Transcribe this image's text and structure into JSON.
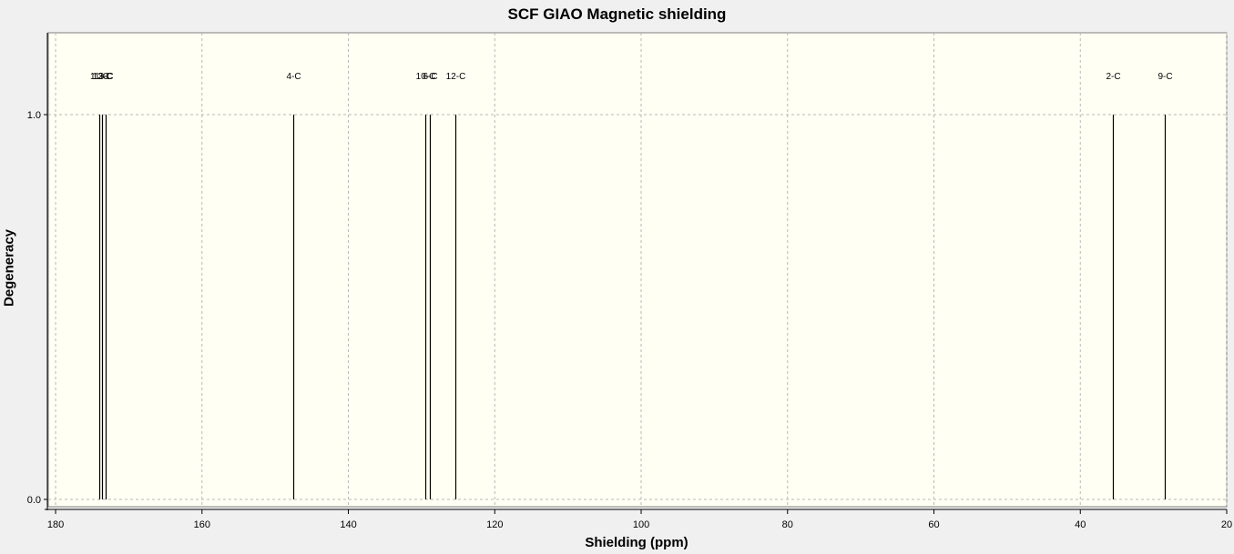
{
  "chart_data": {
    "type": "bar",
    "title": "SCF GIAO Magnetic shielding",
    "xlabel": "Shielding (ppm)",
    "ylabel": "Degeneracy",
    "xlim": [
      181,
      20
    ],
    "ylim": [
      0,
      1.2
    ],
    "x_axis_reversed": true,
    "x_ticks": [
      180,
      160,
      140,
      120,
      100,
      80,
      60,
      40,
      20
    ],
    "y_ticks": [
      0.0,
      1.0
    ],
    "x_tick_labels": [
      "180",
      "160",
      "140",
      "120",
      "100",
      "80",
      "60",
      "40",
      "20"
    ],
    "y_tick_labels": [
      "0.0",
      "1.0"
    ],
    "grid": true,
    "background_color": "#fffff4",
    "line_color": "#000000",
    "peaks": [
      {
        "label": "11-C",
        "x": 174.0,
        "y": 1.0
      },
      {
        "label": "13-C",
        "x": 173.6,
        "y": 1.0
      },
      {
        "label": "3-C",
        "x": 173.1,
        "y": 1.0
      },
      {
        "label": "4-C",
        "x": 147.5,
        "y": 1.0
      },
      {
        "label": "10-C",
        "x": 129.5,
        "y": 1.0
      },
      {
        "label": "6-C",
        "x": 128.9,
        "y": 1.0
      },
      {
        "label": "12-C",
        "x": 125.4,
        "y": 1.0
      },
      {
        "label": "2-C",
        "x": 35.5,
        "y": 1.0
      },
      {
        "label": "9-C",
        "x": 28.4,
        "y": 1.0
      }
    ]
  }
}
